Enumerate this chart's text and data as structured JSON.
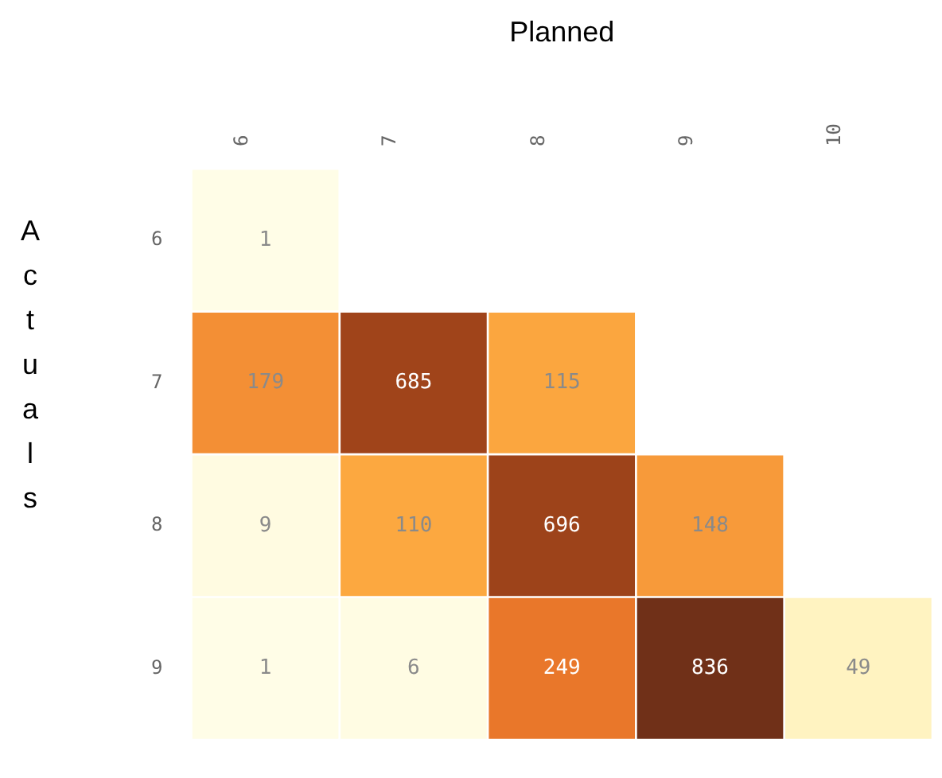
{
  "chart_data": {
    "type": "heatmap",
    "xlabel": "Planned",
    "ylabel": "Actuals",
    "categories": [
      "6",
      "7",
      "8",
      "9",
      "10"
    ],
    "y_categories": [
      "6",
      "7",
      "8",
      "9"
    ],
    "cells": [
      [
        1,
        null,
        null,
        null,
        null
      ],
      [
        179,
        685,
        115,
        null,
        null
      ],
      [
        9,
        110,
        696,
        148,
        null
      ],
      [
        1,
        6,
        249,
        836,
        49
      ]
    ],
    "data_labels": true
  }
}
